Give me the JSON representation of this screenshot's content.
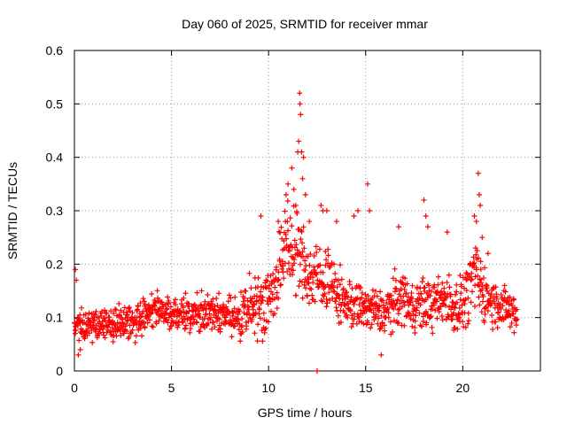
{
  "chart_data": {
    "type": "scatter",
    "title": "Day 060 of 2025, SRMTID for receiver mmar",
    "xlabel": "GPS time / hours",
    "ylabel": "SRMTID / TECUs",
    "xlim": [
      0,
      24
    ],
    "ylim": [
      0,
      0.6
    ],
    "x_ticks": [
      0,
      5,
      10,
      15,
      20
    ],
    "x_tick_labels": [
      "0",
      "5",
      "10",
      "15",
      "20"
    ],
    "y_ticks": [
      0,
      0.1,
      0.2,
      0.3,
      0.4,
      0.5,
      0.6
    ],
    "y_tick_labels": [
      "0",
      "0.1",
      "0.2",
      "0.3",
      "0.4",
      "0.5",
      "0.6"
    ],
    "grid": true,
    "marker": "+",
    "color": "#ff0000",
    "envelope": {
      "x": [
        0,
        0.5,
        1,
        2,
        3,
        4,
        5,
        6,
        7,
        8,
        8.5,
        9,
        9.5,
        10,
        10.3,
        10.6,
        11,
        11.3,
        11.6,
        12,
        12.5,
        13,
        13.5,
        14,
        14.5,
        15,
        15.5,
        16,
        16.5,
        17,
        17.5,
        18,
        18.5,
        19,
        19.5,
        20,
        20.3,
        20.6,
        20.9,
        21.2,
        21.5,
        22,
        22.5,
        22.8
      ],
      "mean": [
        0.09,
        0.085,
        0.09,
        0.09,
        0.09,
        0.12,
        0.11,
        0.105,
        0.11,
        0.1,
        0.095,
        0.12,
        0.13,
        0.13,
        0.16,
        0.2,
        0.23,
        0.23,
        0.22,
        0.18,
        0.17,
        0.18,
        0.14,
        0.13,
        0.12,
        0.12,
        0.11,
        0.11,
        0.13,
        0.14,
        0.12,
        0.13,
        0.12,
        0.14,
        0.12,
        0.13,
        0.15,
        0.18,
        0.16,
        0.14,
        0.13,
        0.12,
        0.11,
        0.1
      ],
      "spread": [
        0.025,
        0.02,
        0.02,
        0.022,
        0.022,
        0.025,
        0.022,
        0.022,
        0.025,
        0.03,
        0.028,
        0.035,
        0.04,
        0.04,
        0.045,
        0.05,
        0.06,
        0.06,
        0.055,
        0.045,
        0.04,
        0.045,
        0.035,
        0.03,
        0.03,
        0.03,
        0.03,
        0.03,
        0.035,
        0.035,
        0.03,
        0.035,
        0.03,
        0.035,
        0.035,
        0.035,
        0.04,
        0.045,
        0.04,
        0.035,
        0.03,
        0.03,
        0.025,
        0.025
      ]
    },
    "points": [
      [
        0.05,
        0.19
      ],
      [
        0.1,
        0.17
      ],
      [
        0.2,
        0.03
      ],
      [
        0.3,
        0.04
      ],
      [
        9.6,
        0.29
      ],
      [
        10.5,
        0.28
      ],
      [
        10.9,
        0.33
      ],
      [
        11.0,
        0.35
      ],
      [
        11.2,
        0.38
      ],
      [
        11.3,
        0.34
      ],
      [
        11.4,
        0.31
      ],
      [
        11.5,
        0.41
      ],
      [
        11.55,
        0.43
      ],
      [
        11.6,
        0.52
      ],
      [
        11.62,
        0.5
      ],
      [
        11.65,
        0.48
      ],
      [
        11.7,
        0.41
      ],
      [
        11.8,
        0.4
      ],
      [
        11.9,
        0.33
      ],
      [
        11.75,
        0.36
      ],
      [
        12.1,
        0.28
      ],
      [
        12.5,
        0.0
      ],
      [
        12.7,
        0.31
      ],
      [
        12.8,
        0.3
      ],
      [
        13.0,
        0.3
      ],
      [
        13.5,
        0.28
      ],
      [
        14.4,
        0.29
      ],
      [
        14.6,
        0.3
      ],
      [
        15.1,
        0.35
      ],
      [
        15.2,
        0.3
      ],
      [
        15.8,
        0.03
      ],
      [
        16.7,
        0.27
      ],
      [
        18.0,
        0.32
      ],
      [
        18.1,
        0.29
      ],
      [
        18.2,
        0.27
      ],
      [
        19.2,
        0.26
      ],
      [
        20.6,
        0.29
      ],
      [
        20.7,
        0.28
      ],
      [
        20.8,
        0.37
      ],
      [
        20.85,
        0.33
      ],
      [
        20.9,
        0.31
      ],
      [
        21.0,
        0.25
      ],
      [
        21.3,
        0.22
      ]
    ],
    "dense_count": 1400
  }
}
